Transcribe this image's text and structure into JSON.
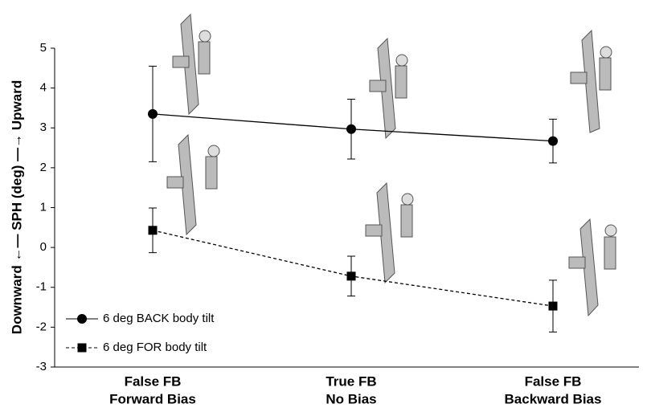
{
  "chart_data": {
    "type": "line",
    "ylabel": "Downward ←— SPH (deg) —→ Upward",
    "categories": [
      [
        "False FB",
        "Forward Bias"
      ],
      [
        "True FB",
        "No Bias"
      ],
      [
        "False FB",
        "Backward Bias"
      ]
    ],
    "series": [
      {
        "name": "6 deg BACK body tilt",
        "color": "#000000",
        "marker": "circle",
        "dash": false,
        "values": [
          3.35,
          2.97,
          2.67
        ],
        "errors": [
          1.2,
          0.75,
          0.55
        ]
      },
      {
        "name": "6 deg FOR body tilt",
        "color": "#000000",
        "marker": "square",
        "dash": true,
        "values": [
          0.43,
          -0.72,
          -1.47
        ],
        "errors": [
          0.56,
          0.5,
          0.65
        ]
      }
    ],
    "ylim": [
      -3,
      5
    ],
    "yticks": [
      -3,
      -2,
      -1,
      0,
      1,
      2,
      3,
      4,
      5
    ],
    "grid": false,
    "legend": "lower left"
  }
}
